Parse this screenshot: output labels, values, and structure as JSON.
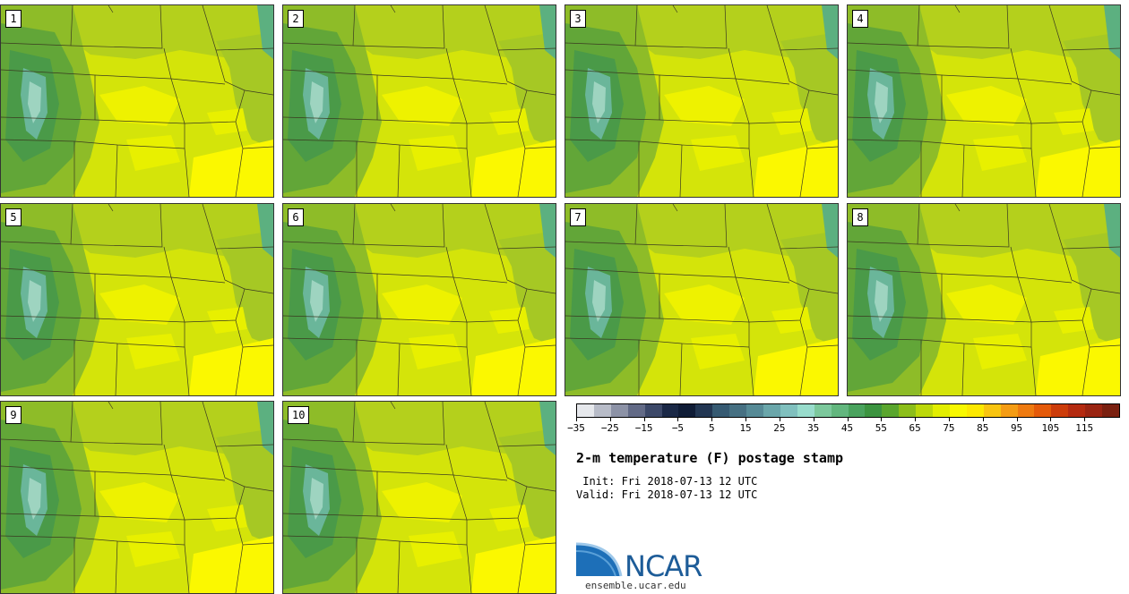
{
  "panels": [
    {
      "label": "1"
    },
    {
      "label": "2"
    },
    {
      "label": "3"
    },
    {
      "label": "4"
    },
    {
      "label": "5"
    },
    {
      "label": "6"
    },
    {
      "label": "7"
    },
    {
      "label": "8"
    },
    {
      "label": "9"
    },
    {
      "label": "10"
    }
  ],
  "colorbar": {
    "colors": [
      "#e6e8ec",
      "#b8bcc8",
      "#8c92a6",
      "#626a86",
      "#3c4868",
      "#1a2846",
      "#0f1c36",
      "#223652",
      "#365a72",
      "#467082",
      "#568a96",
      "#6aa6aa",
      "#80c0be",
      "#98dccc",
      "#7cc89c",
      "#62b67e",
      "#4aa35e",
      "#3c9440",
      "#5aa62e",
      "#8cbe1a",
      "#bcd80a",
      "#e2ee00",
      "#f8f800",
      "#fce800",
      "#f8c410",
      "#f49c14",
      "#ee7a10",
      "#e45a0a",
      "#cc3c0a",
      "#b42a10",
      "#9a2412",
      "#7a2010"
    ],
    "tick_labels": [
      "−35",
      "−25",
      "−15",
      "−5",
      "5",
      "15",
      "25",
      "35",
      "45",
      "55",
      "65",
      "75",
      "85",
      "95",
      "105",
      "115"
    ]
  },
  "title": "2-m temperature (F) postage stamp",
  "init": " Init: Fri 2018-07-13 12 UTC",
  "valid": "Valid: Fri 2018-07-13 12 UTC",
  "logo": {
    "name": "NCAR",
    "url": "ensemble.ucar.edu"
  }
}
